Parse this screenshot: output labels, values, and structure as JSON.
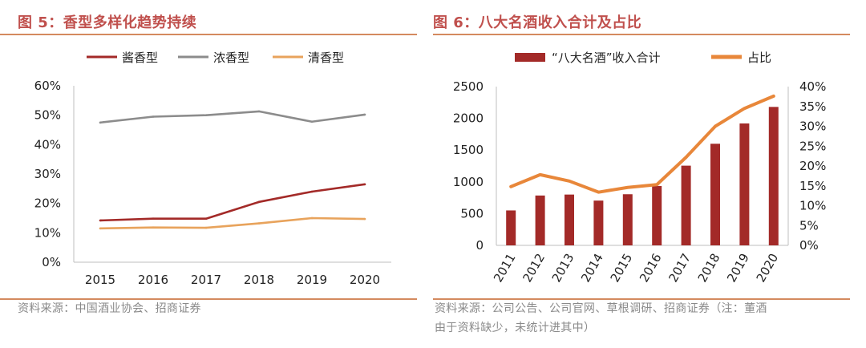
{
  "figure5": {
    "title": "图 5：香型多样化趋势持续",
    "source": "资料来源：中国酒业协会、招商证券"
  },
  "figure6": {
    "title": "图 6：八大名酒收入合计及占比",
    "source_line1": "资料来源：公司公告、公司官网、草根调研、招商证券（注：董酒",
    "source_line2": "由于资料缺少，未统计进其中）"
  },
  "colors": {
    "title": "#c0504d",
    "rule": "#d48a5f",
    "jiang": "#a32a28",
    "nong": "#8c8c8c",
    "qing": "#e8a35c",
    "bar": "#a32a28",
    "ratio_line": "#e8873a"
  },
  "chart_data": [
    {
      "type": "line",
      "title": "图 5：香型多样化趋势持续",
      "x": [
        "2015",
        "2016",
        "2017",
        "2018",
        "2019",
        "2020"
      ],
      "ylim": [
        0,
        60
      ],
      "yticks": [
        "0%",
        "10%",
        "20%",
        "30%",
        "40%",
        "50%",
        "60%"
      ],
      "xlabel": "",
      "ylabel": "",
      "legend_position": "top",
      "series": [
        {
          "name": "酱香型",
          "values": [
            14.2,
            14.8,
            14.8,
            20.5,
            24.0,
            26.5
          ]
        },
        {
          "name": "浓香型",
          "values": [
            47.5,
            49.5,
            50.0,
            51.3,
            47.8,
            50.2
          ]
        },
        {
          "name": "清香型",
          "values": [
            11.5,
            11.8,
            11.7,
            13.2,
            15.0,
            14.7
          ]
        }
      ]
    },
    {
      "type": "bar",
      "title": "图 6：八大名酒收入合计及占比",
      "categories": [
        "2011",
        "2012",
        "2013",
        "2014",
        "2015",
        "2016",
        "2017",
        "2018",
        "2019",
        "2020"
      ],
      "ylim": [
        0,
        2500
      ],
      "yticks": [
        "0",
        "500",
        "1000",
        "1500",
        "2000",
        "2500"
      ],
      "y2lim": [
        0,
        40
      ],
      "y2ticks": [
        "0%",
        "5%",
        "10%",
        "15%",
        "20%",
        "25%",
        "30%",
        "35%",
        "40%"
      ],
      "legend_position": "top",
      "series": [
        {
          "name": "“八大名酒”收入合计",
          "type": "bar",
          "axis": "left",
          "values": [
            550,
            785,
            800,
            705,
            805,
            935,
            1255,
            1600,
            1920,
            2180
          ]
        },
        {
          "name": "占比",
          "type": "line",
          "axis": "right",
          "values": [
            14.8,
            17.8,
            16.2,
            13.4,
            14.6,
            15.3,
            22.2,
            30.0,
            34.5,
            37.6
          ]
        }
      ]
    }
  ]
}
